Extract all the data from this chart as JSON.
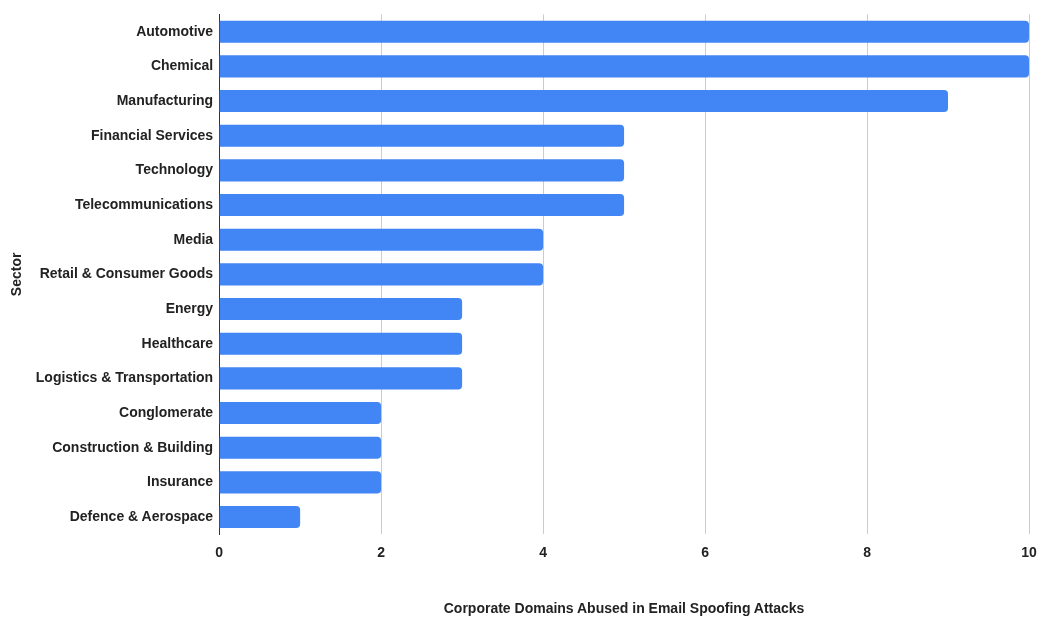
{
  "chart_data": {
    "type": "bar",
    "orientation": "horizontal",
    "xlabel": "Corporate Domains Abused in Email Spoofing Attacks",
    "ylabel": "Sector",
    "categories": [
      "Automotive",
      "Chemical",
      "Manufacturing",
      "Financial Services",
      "Technology",
      "Telecommunications",
      "Media",
      "Retail & Consumer Goods",
      "Energy",
      "Healthcare",
      "Logistics & Transportation",
      "Conglomerate",
      "Construction & Building",
      "Insurance",
      "Defence & Aerospace"
    ],
    "values": [
      10,
      10,
      9,
      5,
      5,
      5,
      4,
      4,
      3,
      3,
      3,
      2,
      2,
      2,
      1
    ],
    "color": "#4285f4",
    "xlim": [
      0,
      10
    ],
    "xticks": [
      0,
      2,
      4,
      6,
      8,
      10
    ],
    "grid": "x"
  }
}
